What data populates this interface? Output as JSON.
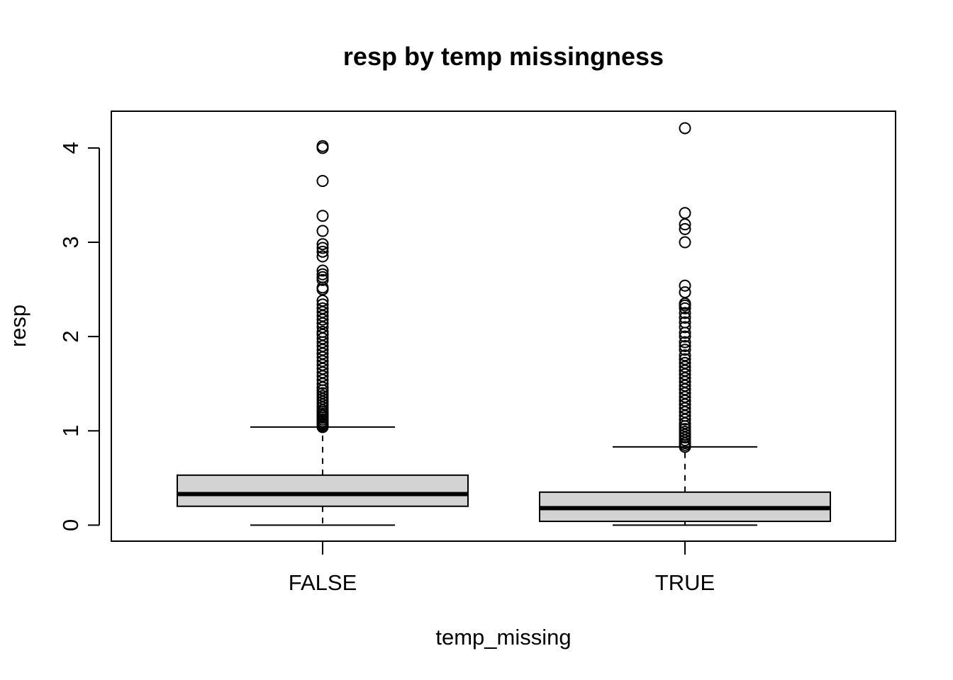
{
  "chart_data": {
    "type": "boxplot",
    "title": "resp by temp missingness",
    "xlabel": "temp_missing",
    "ylabel": "resp",
    "categories": [
      "FALSE",
      "TRUE"
    ],
    "ylim": [
      -0.17,
      4.39
    ],
    "yticks": [
      0,
      1,
      2,
      3,
      4
    ],
    "grid": false,
    "box_fill": "#d3d3d3",
    "line_color": "#000000",
    "boxes": [
      {
        "name": "FALSE",
        "whisker_low": 0.0,
        "q1": 0.2,
        "median": 0.33,
        "q3": 0.53,
        "whisker_high": 1.04,
        "outliers": [
          1.04,
          1.05,
          1.06,
          1.07,
          1.08,
          1.1,
          1.12,
          1.14,
          1.16,
          1.18,
          1.2,
          1.22,
          1.25,
          1.28,
          1.31,
          1.34,
          1.37,
          1.4,
          1.43,
          1.46,
          1.5,
          1.54,
          1.58,
          1.62,
          1.66,
          1.7,
          1.74,
          1.78,
          1.82,
          1.86,
          1.9,
          1.94,
          1.98,
          2.02,
          2.05,
          2.1,
          2.14,
          2.18,
          2.22,
          2.26,
          2.3,
          2.34,
          2.38,
          2.5,
          2.52,
          2.6,
          2.63,
          2.66,
          2.7,
          2.85,
          2.9,
          2.94,
          2.98,
          3.12,
          3.28,
          3.65,
          4.0,
          4.02
        ]
      },
      {
        "name": "TRUE",
        "whisker_low": 0.0,
        "q1": 0.04,
        "median": 0.18,
        "q3": 0.35,
        "whisker_high": 0.83,
        "outliers": [
          0.83,
          0.85,
          0.87,
          0.9,
          0.93,
          0.96,
          0.99,
          1.02,
          1.05,
          1.08,
          1.12,
          1.16,
          1.2,
          1.24,
          1.28,
          1.32,
          1.36,
          1.4,
          1.44,
          1.48,
          1.52,
          1.56,
          1.6,
          1.64,
          1.68,
          1.72,
          1.76,
          1.8,
          1.86,
          1.9,
          1.94,
          2.0,
          2.04,
          2.1,
          2.15,
          2.2,
          2.25,
          2.3,
          2.33,
          2.35,
          2.47,
          2.54,
          3.0,
          3.14,
          3.19,
          3.31,
          4.21
        ]
      }
    ]
  }
}
